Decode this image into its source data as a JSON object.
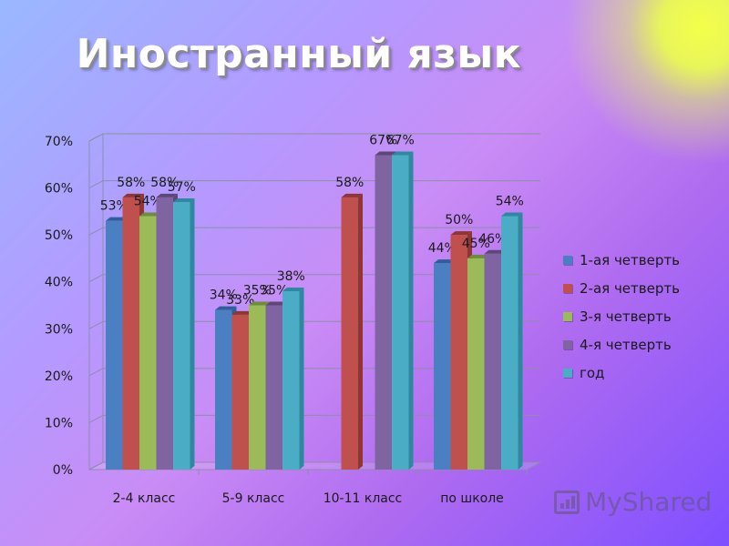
{
  "title": "Иностранный язык",
  "watermark": {
    "text": "MyShared"
  },
  "colors": {
    "series": [
      "#4a7fc1",
      "#c0504d",
      "#9bbb59",
      "#8064a2",
      "#4bacc6"
    ],
    "sideShade": [
      "#2f5f9a",
      "#8e3634",
      "#718b3d",
      "#5d4777",
      "#2f87a0"
    ],
    "grid": "#8a8fa8"
  },
  "chart_data": {
    "type": "bar",
    "title": "Иностранный язык",
    "categories": [
      "2-4 класс",
      "5-9 класс",
      "10-11 класс",
      "по школе"
    ],
    "series": [
      {
        "name": "1-ая четверть",
        "values": [
          53,
          34,
          null,
          44
        ]
      },
      {
        "name": "2-ая четверть",
        "values": [
          58,
          33,
          58,
          50
        ]
      },
      {
        "name": "3-я четверть",
        "values": [
          54,
          35,
          null,
          45
        ]
      },
      {
        "name": "4-я четверть",
        "values": [
          58,
          35,
          67,
          46
        ]
      },
      {
        "name": "год",
        "values": [
          57,
          38,
          67,
          54
        ]
      }
    ],
    "ylim": [
      0,
      70
    ],
    "yticks": [
      "0%",
      "10%",
      "20%",
      "30%",
      "40%",
      "50%",
      "60%",
      "70%"
    ],
    "value_suffix": "%",
    "xlabel": "",
    "ylabel": "",
    "grid": true,
    "legend": "right"
  }
}
